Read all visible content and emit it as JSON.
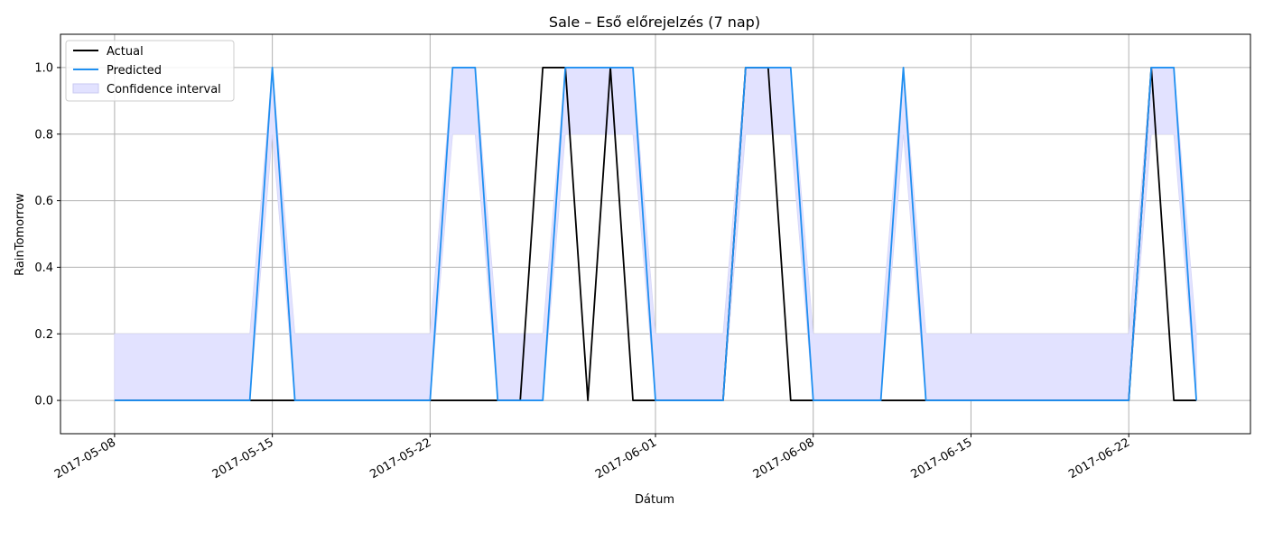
{
  "chart_data": {
    "type": "line",
    "title": "Sale – Eső előrejelzés (7 nap)",
    "xlabel": "Dátum",
    "ylabel": "RainTomorrow",
    "x_start": "2017-05-08",
    "x": [
      "2017-05-08",
      "2017-05-09",
      "2017-05-10",
      "2017-05-11",
      "2017-05-12",
      "2017-05-13",
      "2017-05-14",
      "2017-05-15",
      "2017-05-16",
      "2017-05-17",
      "2017-05-18",
      "2017-05-19",
      "2017-05-20",
      "2017-05-21",
      "2017-05-22",
      "2017-05-23",
      "2017-05-24",
      "2017-05-25",
      "2017-05-26",
      "2017-05-27",
      "2017-05-28",
      "2017-05-29",
      "2017-05-30",
      "2017-05-31",
      "2017-06-01",
      "2017-06-02",
      "2017-06-03",
      "2017-06-04",
      "2017-06-05",
      "2017-06-06",
      "2017-06-07",
      "2017-06-08",
      "2017-06-09",
      "2017-06-10",
      "2017-06-11",
      "2017-06-12",
      "2017-06-13",
      "2017-06-14",
      "2017-06-15",
      "2017-06-16",
      "2017-06-17",
      "2017-06-18",
      "2017-06-19",
      "2017-06-20",
      "2017-06-21",
      "2017-06-22",
      "2017-06-23",
      "2017-06-24",
      "2017-06-25"
    ],
    "series": [
      {
        "name": "Actual",
        "color": "#000000",
        "values": [
          0,
          0,
          0,
          0,
          0,
          0,
          0,
          0,
          0,
          0,
          0,
          0,
          0,
          0,
          0,
          0,
          0,
          0,
          0,
          1,
          1,
          0,
          1,
          0,
          0,
          0,
          0,
          0,
          1,
          1,
          0,
          0,
          0,
          0,
          0,
          0,
          0,
          0,
          0,
          0,
          0,
          0,
          0,
          0,
          0,
          0,
          1,
          0,
          0
        ]
      },
      {
        "name": "Predicted",
        "color": "#1f8ff0",
        "values": [
          0,
          0,
          0,
          0,
          0,
          0,
          0,
          1,
          0,
          0,
          0,
          0,
          0,
          0,
          0,
          1,
          1,
          0,
          0,
          0,
          1,
          1,
          1,
          1,
          0,
          0,
          0,
          0,
          1,
          1,
          1,
          0,
          0,
          0,
          0,
          1,
          0,
          0,
          0,
          0,
          0,
          0,
          0,
          0,
          0,
          0,
          1,
          1,
          0
        ]
      }
    ],
    "confidence_interval": {
      "name": "Confidence interval",
      "color": "#e2e2ff",
      "lower": [
        0,
        0,
        0,
        0,
        0,
        0,
        0,
        0.8,
        0,
        0,
        0,
        0,
        0,
        0,
        0,
        0.8,
        0.8,
        0,
        0,
        0,
        0.8,
        0.8,
        0.8,
        0.8,
        0,
        0,
        0,
        0,
        0.8,
        0.8,
        0.8,
        0,
        0,
        0,
        0,
        0.8,
        0,
        0,
        0,
        0,
        0,
        0,
        0,
        0,
        0,
        0,
        0.8,
        0.8,
        0
      ],
      "upper": [
        0.2,
        0.2,
        0.2,
        0.2,
        0.2,
        0.2,
        0.2,
        1,
        0.2,
        0.2,
        0.2,
        0.2,
        0.2,
        0.2,
        0.2,
        1,
        1,
        0.2,
        0.2,
        0.2,
        1,
        1,
        1,
        1,
        0.2,
        0.2,
        0.2,
        0.2,
        1,
        1,
        1,
        0.2,
        0.2,
        0.2,
        0.2,
        1,
        0.2,
        0.2,
        0.2,
        0.2,
        0.2,
        0.2,
        0.2,
        0.2,
        0.2,
        0.2,
        1,
        1,
        0.2
      ]
    },
    "xticks": [
      "2017-05-08",
      "2017-05-15",
      "2017-05-22",
      "2017-06-01",
      "2017-06-08",
      "2017-06-15",
      "2017-06-22"
    ],
    "yticks": [
      "0.0",
      "0.2",
      "0.4",
      "0.6",
      "0.8",
      "1.0"
    ],
    "ylim": [
      -0.1,
      1.1
    ],
    "xlim": [
      "2017-05-05 14:24",
      "2017-06-27 09:36"
    ],
    "grid": true,
    "legend_position": "upper left",
    "legend": [
      "Actual",
      "Predicted",
      "Confidence interval"
    ]
  }
}
